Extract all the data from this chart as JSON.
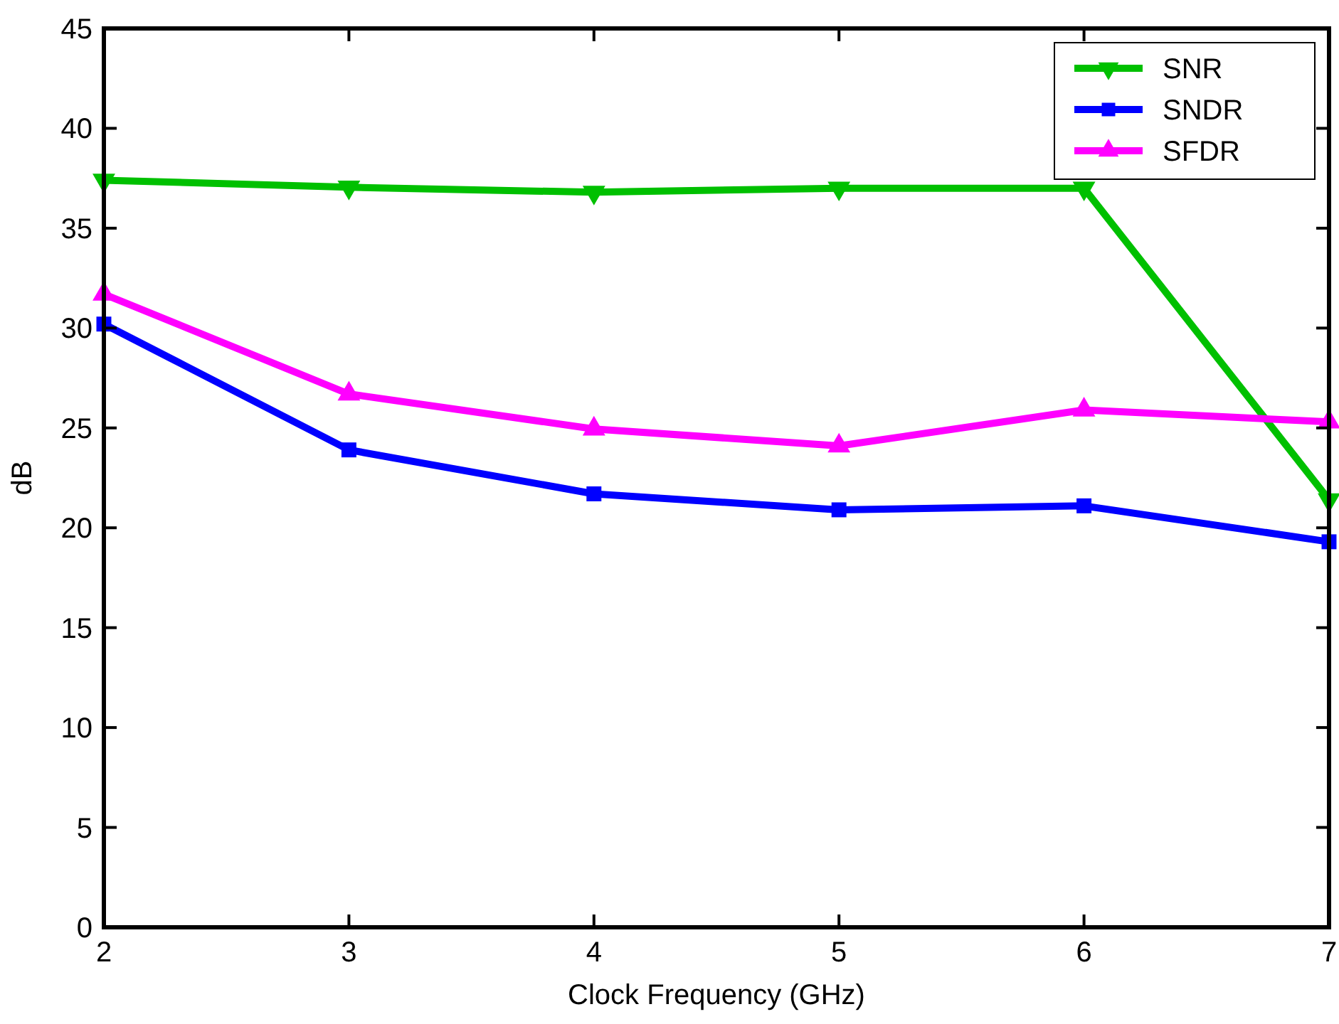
{
  "chart_data": {
    "type": "line",
    "xlabel": "Clock Frequency (GHz)",
    "ylabel": "dB",
    "x": [
      2,
      3,
      4,
      5,
      6,
      7
    ],
    "xlim": [
      2,
      7
    ],
    "xticks": [
      2,
      3,
      4,
      5,
      6,
      7
    ],
    "ylim": [
      0,
      45
    ],
    "yticks": [
      0,
      5,
      10,
      15,
      20,
      25,
      30,
      35,
      40,
      45
    ],
    "grid": false,
    "legend": "top right",
    "line_style": "solid",
    "series": [
      {
        "name": "SNR",
        "color": "#00c000",
        "marker": "triangle-down",
        "values": [
          37.4,
          37.05,
          36.8,
          37.0,
          37.0,
          21.4
        ]
      },
      {
        "name": "SNDR",
        "color": "#0000ff",
        "marker": "square",
        "values": [
          30.2,
          23.9,
          21.7,
          20.9,
          21.1,
          19.3
        ]
      },
      {
        "name": "SFDR",
        "color": "#ff00ff",
        "marker": "triangle",
        "values": [
          31.7,
          26.7,
          24.95,
          24.1,
          25.9,
          25.3
        ]
      }
    ]
  }
}
